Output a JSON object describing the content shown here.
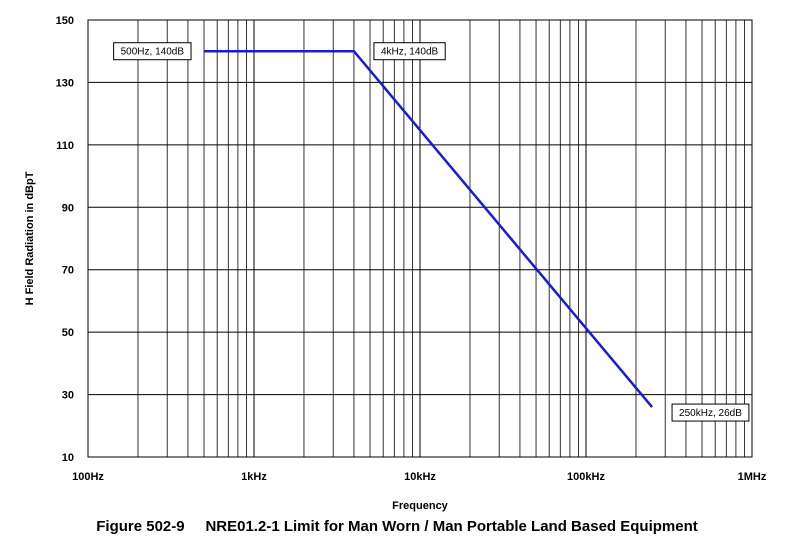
{
  "figure_caption": "Figure 502-9     NRE01.2-1 Limit for Man Worn / Man Portable Land Based Equipment",
  "chart_data": {
    "type": "line",
    "title": "",
    "xlabel": "Frequency",
    "ylabel": "H Field Radiation in dBpT",
    "x_scale": "log",
    "xlim": [
      100,
      1000000
    ],
    "ylim": [
      10,
      150
    ],
    "x_ticks": [
      {
        "value": 100,
        "label": "100Hz"
      },
      {
        "value": 1000,
        "label": "1kHz"
      },
      {
        "value": 10000,
        "label": "10kHz"
      },
      {
        "value": 100000,
        "label": "100kHz"
      },
      {
        "value": 1000000,
        "label": "1MHz"
      }
    ],
    "y_ticks": [
      150,
      130,
      110,
      90,
      70,
      50,
      30,
      10
    ],
    "grid": true,
    "series": [
      {
        "color": "#1a1adc",
        "points": [
          {
            "x": 500,
            "y": 140
          },
          {
            "x": 4000,
            "y": 140
          },
          {
            "x": 250000,
            "y": 26
          }
        ]
      }
    ],
    "annotations": [
      {
        "text": "500Hz, 140dB",
        "x": 500,
        "y": 140,
        "side": "left"
      },
      {
        "text": "4kHz, 140dB",
        "x": 4000,
        "y": 140,
        "side": "right"
      },
      {
        "text": "250kHz, 26dB",
        "x": 250000,
        "y": 26,
        "side": "right"
      }
    ]
  }
}
